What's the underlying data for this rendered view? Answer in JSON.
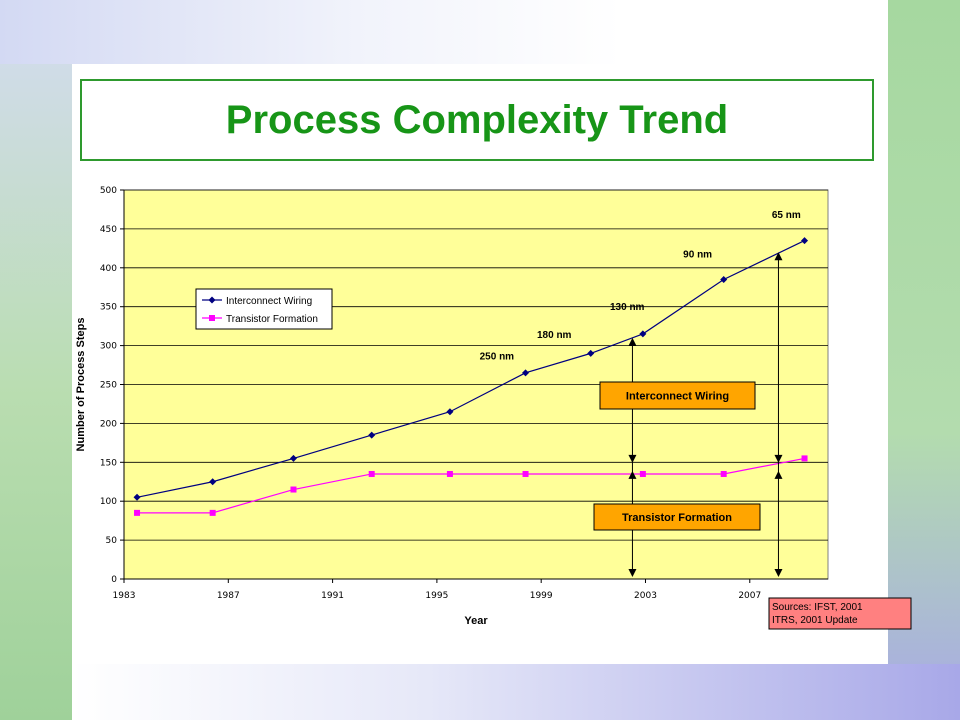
{
  "slide": {
    "title": "Process Complexity Trend"
  },
  "colors": {
    "title": "#179517",
    "title_border": "#2e9a2e",
    "plot_bg": "#ffff99",
    "interconnect": "#000080",
    "transistor": "#ff00ff",
    "callout_fill": "#ffa500",
    "sources_fill": "#ff8080"
  },
  "chart_data": {
    "type": "line",
    "xlabel": "Year",
    "ylabel": "Number of Process Steps",
    "xlim": [
      1983,
      2010
    ],
    "ylim": [
      0,
      500
    ],
    "x_ticks": [
      1983,
      1987,
      1991,
      1995,
      1999,
      2003,
      2007
    ],
    "y_ticks": [
      0,
      50,
      100,
      150,
      200,
      250,
      300,
      350,
      400,
      450,
      500
    ],
    "grid": true,
    "legend_position": "left-middle",
    "series": [
      {
        "name": "Interconnect Wiring",
        "marker": "diamond",
        "color": "#000080",
        "x": [
          1983.5,
          1986.4,
          1989.5,
          1992.5,
          1995.5,
          1998.4,
          2000.9,
          2002.9,
          2006.0,
          2009.1
        ],
        "y": [
          105,
          125,
          155,
          185,
          215,
          265,
          290,
          315,
          385,
          435
        ]
      },
      {
        "name": "Transistor Formation",
        "marker": "square",
        "color": "#ff00ff",
        "x": [
          1983.5,
          1986.4,
          1989.5,
          1992.5,
          1995.5,
          1998.4,
          2002.9,
          2006.0,
          2009.1
        ],
        "y": [
          85,
          85,
          115,
          135,
          135,
          135,
          135,
          135,
          155
        ]
      }
    ],
    "node_labels": [
      {
        "text": "250 nm",
        "x": 1997.3,
        "y": 282
      },
      {
        "text": "180 nm",
        "x": 1999.5,
        "y": 310
      },
      {
        "text": "130 nm",
        "x": 2002.3,
        "y": 346
      },
      {
        "text": "90 nm",
        "x": 2005.0,
        "y": 413
      },
      {
        "text": "65 nm",
        "x": 2008.4,
        "y": 464
      }
    ],
    "callouts": [
      {
        "text": "Interconnect Wiring"
      },
      {
        "text": "Transistor Formation"
      }
    ],
    "arrows": [
      {
        "x": 2002.5,
        "y_from": 310,
        "y_to": 0
      },
      {
        "x": 2008.1,
        "y_from": 420,
        "y_to": 0
      }
    ],
    "sources": [
      "Sources: IFST, 2001",
      "ITRS, 2001 Update"
    ]
  }
}
